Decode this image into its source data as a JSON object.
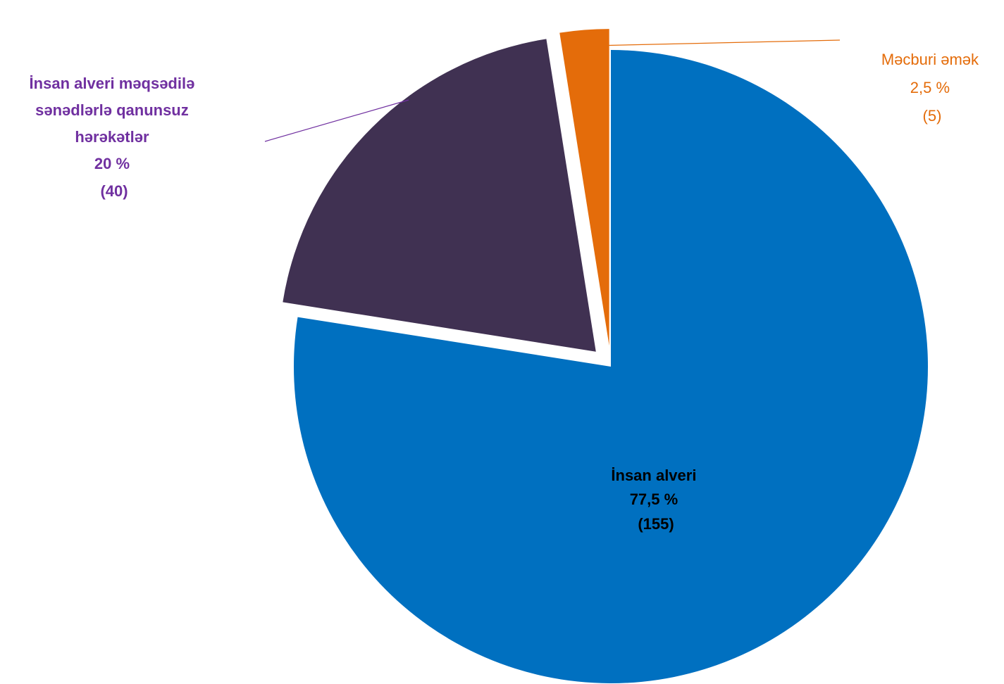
{
  "chart_data": {
    "type": "pie",
    "title": "",
    "slices": [
      {
        "name": "İnsan alveri",
        "value": 155,
        "percent_label": "77,5 %",
        "count_label": "(155)",
        "color": "#0070C0",
        "label_color": "#000000",
        "exploded": false
      },
      {
        "name": "İnsan alveri məqsədilə sənədlərlə qanunsuz hərəkətlər",
        "label_lines": [
          "İnsan alveri məqsədilə",
          "sənədlərlə qanunsuz",
          "hərəkətlər"
        ],
        "value": 40,
        "percent_label": "20 %",
        "count_label": "(40)",
        "color": "#403152",
        "label_color": "#7030A0",
        "exploded": true
      },
      {
        "name": "Məcburi əmək",
        "value": 5,
        "percent_label": "2,5 %",
        "count_label": "(5)",
        "color": "#E46C0A",
        "label_color": "#E46C0A",
        "exploded": true
      }
    ],
    "start_angle_deg": 0,
    "direction": "clockwise",
    "legend": "none"
  }
}
